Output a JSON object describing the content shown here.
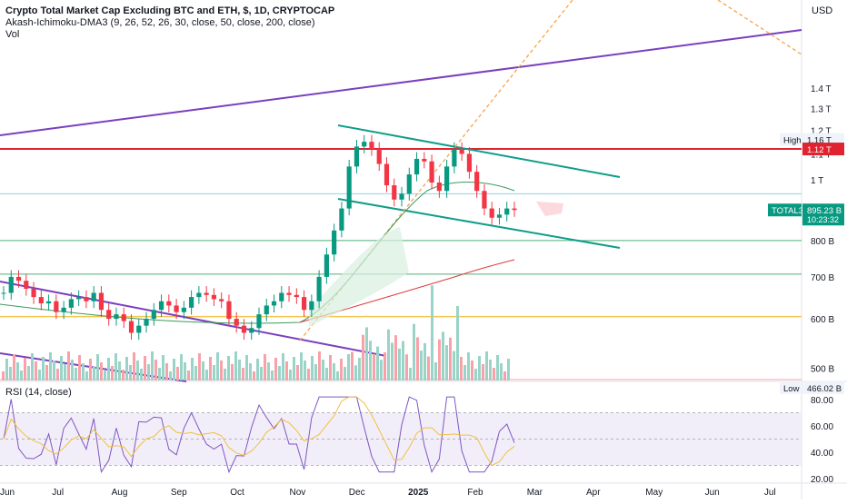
{
  "legend": {
    "title": "Crypto Total Market Cap Excluding BTC and ETH, $, 1D, CRYPTOCAP",
    "indicator": "Akash-Ichimoku-DMA3 (9, 26, 52, 26, 30, close, 50, close, 200, close)",
    "volume": "Vol",
    "rsi": "RSI (14, close)"
  },
  "currency": "USD",
  "colors": {
    "up": "#089981",
    "down": "#f23645",
    "purple": "#7b3fbf",
    "teal": "#0f9d8a",
    "orange": "#f5a34a",
    "red_line": "#e0242f",
    "cyan_line": "#8fd3e8",
    "green_line": "#4caf78",
    "yellow_line": "#f3c64f",
    "rsi": "#7e57c2",
    "rsi_ma": "#f0c040"
  },
  "chart_data": [
    {
      "type": "candlestick",
      "name": "main-price",
      "title": "Crypto Total Market Cap Excluding BTC and ETH, $, 1D, CRYPTOCAP",
      "y_scale": "log",
      "y_ticks": [
        "1.4 T",
        "1.3 T",
        "1.2 T",
        "1.1 T",
        "1 T",
        "800 B",
        "700 B",
        "600 B",
        "500 B"
      ],
      "y_tick_values": [
        1400,
        1300,
        1200,
        1100,
        1000,
        800,
        700,
        600,
        500
      ],
      "x_ticks": [
        "Jun",
        "Jul",
        "Aug",
        "Sep",
        "Oct",
        "Nov",
        "Dec",
        "2025",
        "Feb",
        "Mar",
        "Apr",
        "May",
        "Jun",
        "Jul"
      ],
      "x_tick_months": [
        0,
        1,
        2,
        3,
        4,
        5,
        6,
        7,
        8,
        9,
        10,
        11,
        12,
        13
      ],
      "close_series_b": [
        660,
        700,
        690,
        670,
        650,
        635,
        640,
        615,
        625,
        645,
        650,
        640,
        660,
        620,
        600,
        610,
        595,
        570,
        585,
        600,
        620,
        640,
        630,
        615,
        625,
        650,
        660,
        655,
        645,
        640,
        600,
        585,
        570,
        580,
        610,
        630,
        640,
        660,
        655,
        650,
        620,
        640,
        700,
        760,
        830,
        900,
        1050,
        1130,
        1150,
        1120,
        1060,
        980,
        930,
        950,
        1020,
        1080,
        1070,
        990,
        960,
        1050,
        1120,
        1100,
        1030,
        960,
        900,
        870,
        880,
        900,
        895
      ],
      "tags": [
        {
          "label": "High",
          "value": "1.16 T"
        },
        {
          "label": "",
          "value": "1.12 T"
        },
        {
          "label": "TOTAL3",
          "value": "895.23 B",
          "sub": "10:23:32"
        },
        {
          "label": "Low",
          "value": "466.02 B"
        }
      ]
    },
    {
      "type": "line",
      "name": "rsi",
      "title": "RSI (14, close)",
      "y_ticks": [
        "80.00",
        "60.00",
        "40.00",
        "20.00"
      ],
      "y_tick_values": [
        80,
        60,
        40,
        20
      ],
      "bands": [
        70,
        50,
        30
      ]
    }
  ]
}
